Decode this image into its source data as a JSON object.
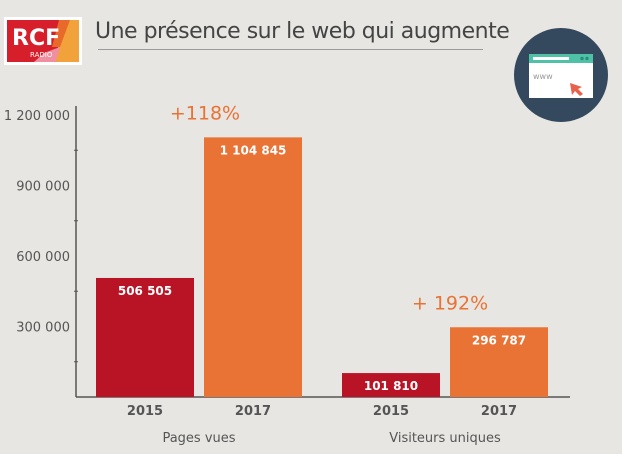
{
  "header": {
    "logo_text": "RCF",
    "logo_subtext": "RADIO",
    "title": "Une présence sur le web qui augmente",
    "icon": "browser-www-cursor-icon",
    "icon_text": "www"
  },
  "colors": {
    "bar_2015": "#b81426",
    "bar_2017": "#e97235",
    "annotation": "#e97235",
    "icon_bg": "#34495e"
  },
  "chart_data": {
    "type": "bar",
    "title": "Une présence sur le web qui augmente",
    "ylim": [
      0,
      1200000
    ],
    "yticks": [
      300000,
      600000,
      900000,
      1200000
    ],
    "ytick_labels": [
      "300 000",
      "600 000",
      "900 000",
      "1 200 000"
    ],
    "grid": false,
    "groups": [
      {
        "label": "Pages vues",
        "categories": [
          "2015",
          "2017"
        ],
        "values": [
          506505,
          1104845
        ],
        "value_labels": [
          "506 505",
          "1 104 845"
        ],
        "annotation": "+118%"
      },
      {
        "label": "Visiteurs uniques",
        "categories": [
          "2015",
          "2017"
        ],
        "values": [
          101810,
          296787
        ],
        "value_labels": [
          "101 810",
          "296 787"
        ],
        "annotation": "+ 192%"
      }
    ]
  }
}
